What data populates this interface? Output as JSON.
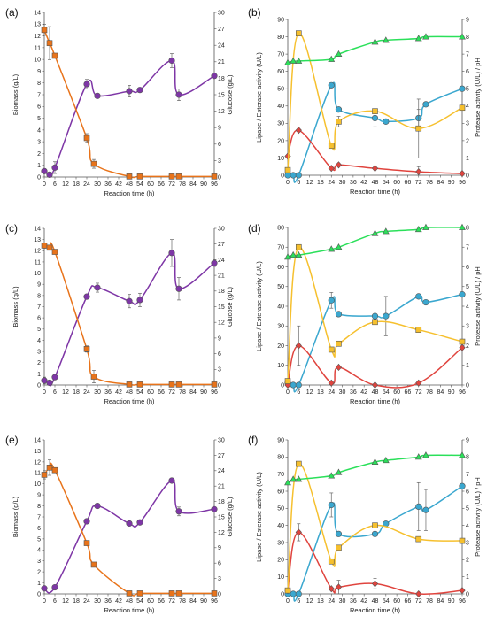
{
  "colors": {
    "biomass": "#7E36A6",
    "glucose": "#E8731A",
    "lipase": "#3AA7CF",
    "esterase": "#E0443E",
    "protease": "#F6C02E",
    "ph": "#2BE05A",
    "marker_edge": "#555555"
  },
  "chart_data": [
    {
      "id": "a",
      "type": "line",
      "label": "(a)",
      "xlabel": "Reaction time (h)",
      "ylabel": "Biomass (g/L)",
      "y2label": "Glucose (g/L)",
      "xticks": [
        "0",
        "6",
        "12",
        "18",
        "24",
        "30",
        "36",
        "42",
        "48",
        "54",
        "60",
        "66",
        "72",
        "78",
        "84",
        "90",
        "96"
      ],
      "xlim": [
        0,
        96
      ],
      "ylim": [
        0,
        14
      ],
      "yticks": [
        "0",
        "1",
        "2",
        "3",
        "4",
        "5",
        "6",
        "7",
        "8",
        "9",
        "10",
        "11",
        "12",
        "13",
        "14"
      ],
      "y2lim": [
        0,
        30
      ],
      "y2ticks": [
        "0",
        "3",
        "6",
        "9",
        "12",
        "15",
        "18",
        "21",
        "24",
        "27",
        "30"
      ],
      "series": [
        {
          "key": "biomass",
          "axis": "y1",
          "marker": "circle",
          "x": [
            0,
            3,
            6,
            24,
            30,
            48,
            54,
            72,
            76,
            96
          ],
          "y": [
            0.5,
            0.2,
            0.8,
            7.9,
            6.9,
            7.3,
            7.4,
            9.9,
            7.0,
            8.6
          ],
          "err": [
            0.2,
            0,
            0.5,
            0.4,
            0.15,
            0.5,
            0,
            0.6,
            0.5,
            0.2
          ]
        },
        {
          "key": "glucose",
          "axis": "y2",
          "marker": "square",
          "x": [
            0,
            3,
            6,
            24,
            28,
            48,
            54,
            72,
            76,
            96
          ],
          "y": [
            26.8,
            24.4,
            22.1,
            7.1,
            2.4,
            0.1,
            0.1,
            0.1,
            0.1,
            0.1
          ],
          "err": [
            1.0,
            3.0,
            0,
            0.8,
            0.8,
            0,
            0,
            0,
            0,
            0
          ]
        }
      ]
    },
    {
      "id": "b",
      "type": "line",
      "label": "(b)",
      "xlabel": "Reaction time (h)",
      "ylabel": "Lipase / Esterase activity (U/L)",
      "y2label": "Protease activity (U/L)  / pH",
      "xticks": [
        "0",
        "6",
        "12",
        "18",
        "24",
        "30",
        "36",
        "42",
        "48",
        "54",
        "60",
        "66",
        "72",
        "78",
        "84",
        "90",
        "96"
      ],
      "xlim": [
        0,
        96
      ],
      "ylim": [
        0,
        90
      ],
      "yticks": [
        "0",
        "10",
        "20",
        "30",
        "40",
        "50",
        "60",
        "70",
        "80",
        "90"
      ],
      "y2lim": [
        0,
        9
      ],
      "y2ticks": [
        "0",
        "1",
        "2",
        "3",
        "4",
        "5",
        "6",
        "7",
        "8",
        "9"
      ],
      "series": [
        {
          "key": "lipase",
          "axis": "y1",
          "marker": "circle",
          "x": [
            0,
            3,
            6,
            24,
            28,
            48,
            54,
            72,
            76,
            96
          ],
          "y": [
            0,
            0,
            0,
            52,
            38,
            33,
            31,
            33,
            41,
            50
          ],
          "err": [
            0,
            0,
            0,
            0,
            0,
            5,
            0,
            5,
            0,
            0
          ]
        },
        {
          "key": "esterase",
          "axis": "y1",
          "marker": "diamond",
          "x": [
            0,
            6,
            24,
            28,
            48,
            72,
            96
          ],
          "y": [
            11,
            26,
            4,
            6,
            4,
            2,
            1
          ],
          "err": [
            0,
            0,
            0,
            0,
            0,
            3,
            0
          ]
        },
        {
          "key": "protease",
          "axis": "y2",
          "marker": "square",
          "x": [
            0,
            6,
            24,
            28,
            48,
            72,
            96
          ],
          "y": [
            0.3,
            8.2,
            1.7,
            3.1,
            3.7,
            2.7,
            3.9
          ],
          "err": [
            0,
            0,
            0,
            0.3,
            0,
            1.7,
            0
          ]
        },
        {
          "key": "ph",
          "axis": "y2",
          "marker": "triangle",
          "x": [
            0,
            3,
            6,
            24,
            28,
            48,
            54,
            72,
            76,
            96
          ],
          "y": [
            6.5,
            6.6,
            6.6,
            6.7,
            7.0,
            7.7,
            7.8,
            7.9,
            8.0,
            8.0
          ],
          "err": [
            0,
            0,
            0,
            0,
            0,
            0,
            0,
            0,
            0,
            0
          ]
        }
      ]
    },
    {
      "id": "c",
      "type": "line",
      "label": "(c)",
      "xlabel": "Reaction time (h)",
      "ylabel": "Biomass (g/L)",
      "y2label": "Glucose (g/L)",
      "xticks": [
        "0",
        "6",
        "12",
        "18",
        "24",
        "30",
        "36",
        "42",
        "48",
        "54",
        "60",
        "66",
        "72",
        "78",
        "84",
        "90",
        "96"
      ],
      "xlim": [
        0,
        96
      ],
      "ylim": [
        0,
        14
      ],
      "yticks": [
        "0",
        "1",
        "2",
        "3",
        "4",
        "5",
        "6",
        "7",
        "8",
        "9",
        "10",
        "11",
        "12",
        "13",
        "14"
      ],
      "y2lim": [
        0,
        30
      ],
      "y2ticks": [
        "0",
        "3",
        "6",
        "9",
        "12",
        "15",
        "18",
        "21",
        "24",
        "27",
        "30"
      ],
      "series": [
        {
          "key": "biomass",
          "axis": "y1",
          "marker": "circle",
          "x": [
            0,
            3,
            6,
            24,
            30,
            48,
            54,
            72,
            76,
            96
          ],
          "y": [
            0.4,
            0.2,
            0.7,
            7.9,
            8.7,
            7.5,
            7.6,
            11.8,
            8.6,
            10.9
          ],
          "err": [
            0.3,
            0,
            0,
            0,
            0.4,
            0.6,
            0.6,
            1.2,
            1.0,
            0.3
          ]
        },
        {
          "key": "glucose",
          "axis": "y2",
          "marker": "square",
          "x": [
            0,
            3,
            6,
            24,
            28,
            48,
            54,
            72,
            76,
            96
          ],
          "y": [
            26.7,
            26.3,
            25.5,
            6.9,
            1.6,
            0.1,
            0.1,
            0.1,
            0.1,
            0.1
          ],
          "err": [
            0.5,
            0,
            0,
            0.6,
            1.2,
            0,
            0,
            0,
            0,
            0
          ]
        }
      ]
    },
    {
      "id": "d",
      "type": "line",
      "label": "(d)",
      "xlabel": "Reaction time (h)",
      "ylabel": "Lipase / Esterase activity (U/L)",
      "y2label": "Protease activity (U/L)  / pH",
      "xticks": [
        "0",
        "6",
        "12",
        "18",
        "24",
        "30",
        "36",
        "42",
        "48",
        "54",
        "60",
        "66",
        "72",
        "78",
        "84",
        "90",
        "96"
      ],
      "xlim": [
        0,
        96
      ],
      "ylim": [
        0,
        80
      ],
      "yticks": [
        "0",
        "10",
        "20",
        "30",
        "40",
        "50",
        "60",
        "70",
        "80"
      ],
      "y2lim": [
        0,
        8
      ],
      "y2ticks": [
        "0",
        "1",
        "2",
        "3",
        "4",
        "5",
        "6",
        "7",
        "8"
      ],
      "series": [
        {
          "key": "lipase",
          "axis": "y1",
          "marker": "circle",
          "x": [
            0,
            3,
            6,
            24,
            28,
            48,
            54,
            72,
            76,
            96
          ],
          "y": [
            1,
            0,
            0,
            43,
            36,
            35,
            35,
            45,
            42,
            46
          ],
          "err": [
            0,
            0,
            0,
            4,
            0,
            0,
            10,
            0,
            0,
            0
          ]
        },
        {
          "key": "esterase",
          "axis": "y1",
          "marker": "diamond",
          "x": [
            0,
            6,
            24,
            28,
            48,
            72,
            96
          ],
          "y": [
            0,
            20,
            1,
            9,
            0,
            1,
            19
          ],
          "err": [
            0,
            10,
            0,
            0,
            0,
            0,
            0
          ]
        },
        {
          "key": "protease",
          "axis": "y2",
          "marker": "square",
          "x": [
            0,
            6,
            24,
            28,
            48,
            72,
            96
          ],
          "y": [
            0.2,
            7.0,
            1.8,
            2.1,
            3.2,
            2.8,
            2.2
          ],
          "err": [
            0,
            0,
            0,
            0,
            0,
            0,
            0
          ]
        },
        {
          "key": "ph",
          "axis": "y2",
          "marker": "triangle",
          "x": [
            0,
            3,
            6,
            24,
            28,
            48,
            54,
            72,
            76,
            96
          ],
          "y": [
            6.5,
            6.6,
            6.6,
            6.9,
            7.0,
            7.7,
            7.8,
            7.9,
            8.0,
            8.0
          ],
          "err": [
            0,
            0,
            0,
            0,
            0,
            0,
            0,
            0,
            0,
            0
          ]
        }
      ]
    },
    {
      "id": "e",
      "type": "line",
      "label": "(e)",
      "xlabel": "Reaction time (h)",
      "ylabel": "Biomass (g/L)",
      "y2label": "Glucose (g/L)",
      "xticks": [
        "0",
        "6",
        "12",
        "18",
        "24",
        "30",
        "36",
        "42",
        "48",
        "54",
        "60",
        "66",
        "72",
        "78",
        "84",
        "90",
        "96"
      ],
      "xlim": [
        0,
        96
      ],
      "ylim": [
        0,
        14
      ],
      "yticks": [
        "0",
        "1",
        "2",
        "3",
        "4",
        "5",
        "6",
        "7",
        "8",
        "9",
        "10",
        "11",
        "12",
        "13",
        "14"
      ],
      "y2lim": [
        0,
        30
      ],
      "y2ticks": [
        "0",
        "3",
        "6",
        "9",
        "12",
        "15",
        "18",
        "21",
        "24",
        "27",
        "30"
      ],
      "series": [
        {
          "key": "biomass",
          "axis": "y1",
          "marker": "circle",
          "x": [
            0,
            6,
            24,
            30,
            48,
            54,
            72,
            76,
            96
          ],
          "y": [
            0.5,
            0.6,
            6.6,
            8.0,
            6.4,
            6.5,
            10.3,
            7.5,
            7.7
          ],
          "err": [
            0,
            0,
            0,
            0,
            0,
            0,
            0,
            0.4,
            0
          ]
        },
        {
          "key": "glucose",
          "axis": "y2",
          "marker": "square",
          "x": [
            0,
            3,
            6,
            24,
            28,
            48,
            54,
            72,
            76,
            96
          ],
          "y": [
            23.2,
            24.6,
            24.1,
            9.9,
            5.7,
            0.1,
            0.1,
            0.1,
            0.1,
            0.1
          ],
          "err": [
            0.8,
            1.5,
            0,
            0,
            0,
            0,
            0,
            0,
            0,
            0
          ]
        }
      ]
    },
    {
      "id": "f",
      "type": "line",
      "label": "(f)",
      "xlabel": "Reaction time (h)",
      "ylabel": "Lipase / Esterase activity (U/L)",
      "y2label": "Protease activity (U/L)  / pH",
      "xticks": [
        "0",
        "6",
        "12",
        "18",
        "24",
        "30",
        "36",
        "42",
        "48",
        "54",
        "60",
        "66",
        "72",
        "78",
        "84",
        "90",
        "96"
      ],
      "xlim": [
        0,
        96
      ],
      "ylim": [
        0,
        90
      ],
      "yticks": [
        "0",
        "10",
        "20",
        "30",
        "40",
        "50",
        "60",
        "70",
        "80",
        "90"
      ],
      "y2lim": [
        0,
        9
      ],
      "y2ticks": [
        "0",
        "1",
        "2",
        "3",
        "4",
        "5",
        "6",
        "7",
        "8",
        "9"
      ],
      "series": [
        {
          "key": "lipase",
          "axis": "y1",
          "marker": "circle",
          "x": [
            0,
            3,
            6,
            24,
            28,
            48,
            54,
            72,
            76,
            96
          ],
          "y": [
            0,
            0,
            0,
            52,
            35,
            35,
            41,
            51,
            49,
            63
          ],
          "err": [
            0,
            0,
            0,
            7,
            0,
            0,
            0,
            14,
            12,
            0
          ]
        },
        {
          "key": "esterase",
          "axis": "y1",
          "marker": "diamond",
          "x": [
            0,
            6,
            24,
            28,
            48,
            72,
            96
          ],
          "y": [
            2,
            36,
            3,
            4,
            6,
            0,
            2
          ],
          "err": [
            0,
            5,
            0,
            4,
            3,
            0,
            0
          ]
        },
        {
          "key": "protease",
          "axis": "y2",
          "marker": "square",
          "x": [
            0,
            6,
            24,
            28,
            48,
            72,
            96
          ],
          "y": [
            0.2,
            7.6,
            1.9,
            2.7,
            4.0,
            3.2,
            3.1
          ],
          "err": [
            0,
            0,
            0,
            0,
            0,
            0,
            0
          ]
        },
        {
          "key": "ph",
          "axis": "y2",
          "marker": "triangle",
          "x": [
            0,
            3,
            6,
            24,
            28,
            48,
            54,
            72,
            76,
            96
          ],
          "y": [
            6.5,
            6.7,
            6.7,
            6.9,
            7.1,
            7.7,
            7.8,
            8.0,
            8.1,
            8.1
          ],
          "err": [
            0,
            0,
            0,
            0,
            0,
            0,
            0,
            0,
            0,
            0
          ]
        }
      ]
    }
  ]
}
